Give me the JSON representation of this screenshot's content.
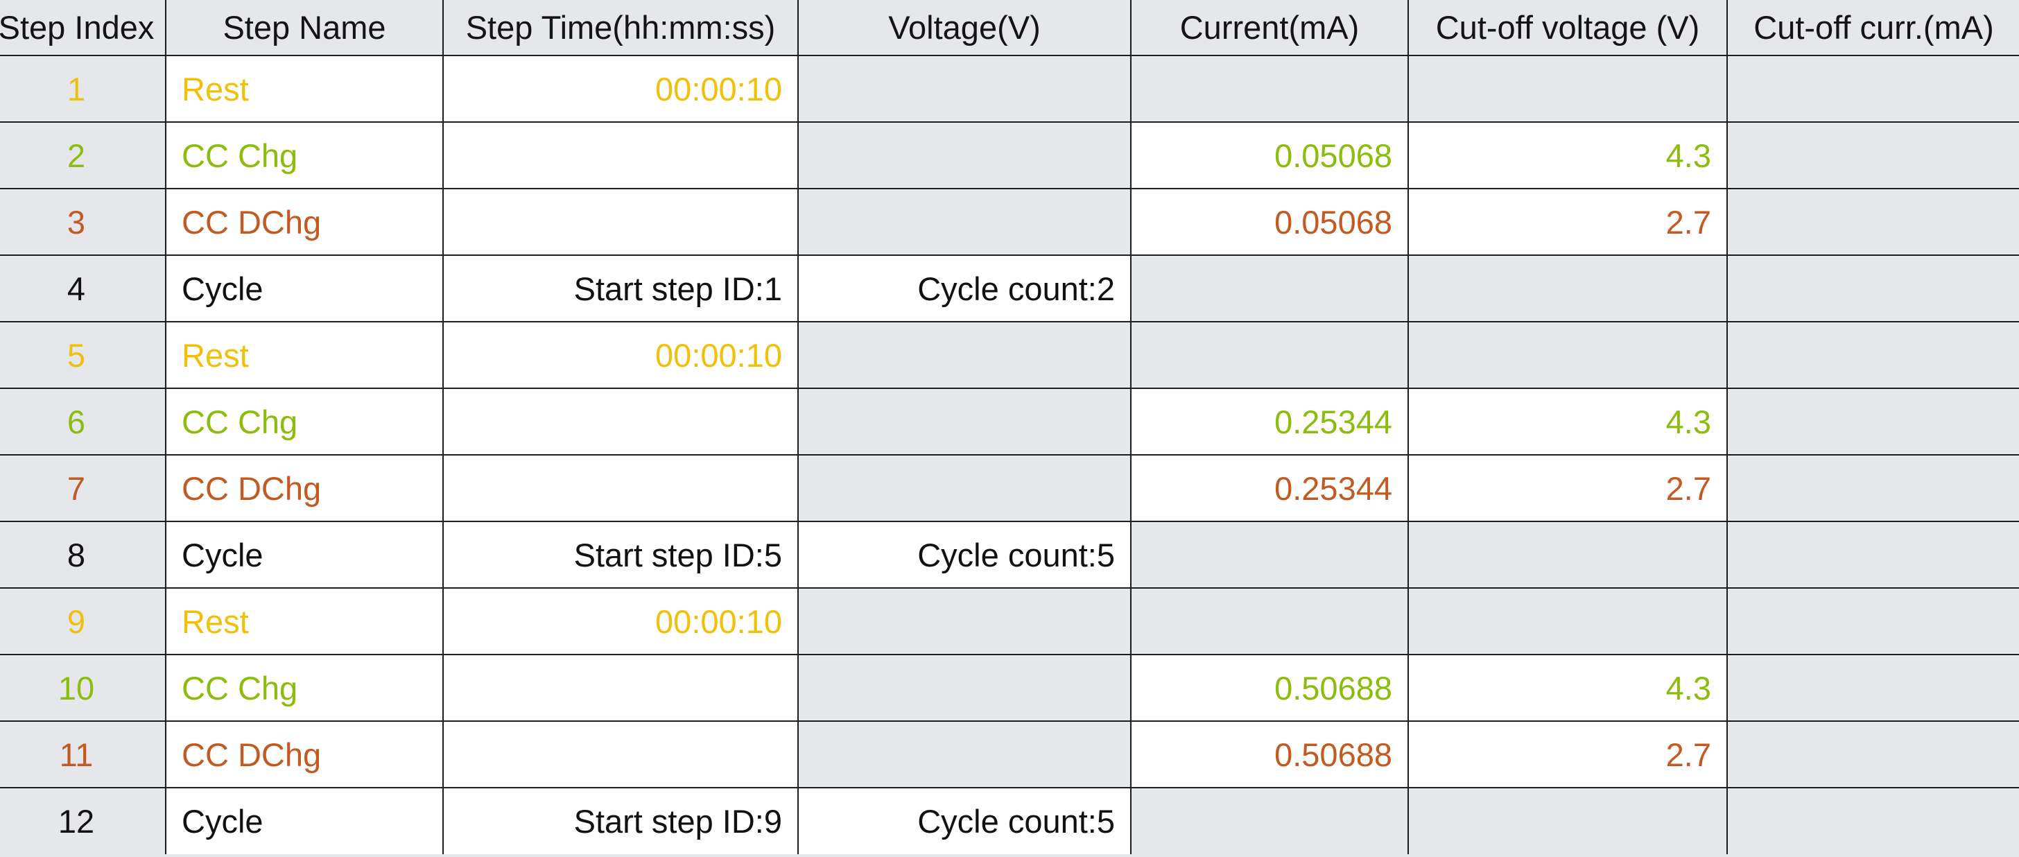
{
  "headers": [
    "Step Index",
    "Step Name",
    "Step Time(hh:mm:ss)",
    "Voltage(V)",
    "Current(mA)",
    "Cut-off voltage (V)",
    "Cut-off curr.(mA)"
  ],
  "colors": {
    "rest": "#efc10a",
    "cc_chg": "#8cbc0c",
    "cc_dchg": "#c25b22",
    "cycle": "#111111",
    "gray_cell": "#e6e7ea",
    "white_cell": "#ffffff"
  },
  "rows": [
    {
      "index": "1",
      "name": "Rest",
      "time": "00:00:10",
      "voltage": "",
      "current": "",
      "cutoff_voltage": "",
      "cutoff_current": ""
    },
    {
      "index": "2",
      "name": "CC Chg",
      "time": "",
      "voltage": "",
      "current": "0.05068",
      "cutoff_voltage": "4.3",
      "cutoff_current": ""
    },
    {
      "index": "3",
      "name": "CC DChg",
      "time": "",
      "voltage": "",
      "current": "0.05068",
      "cutoff_voltage": "2.7",
      "cutoff_current": ""
    },
    {
      "index": "4",
      "name": "Cycle",
      "time": "Start step ID:1",
      "voltage": "Cycle count:2",
      "current": "",
      "cutoff_voltage": "",
      "cutoff_current": ""
    },
    {
      "index": "5",
      "name": "Rest",
      "time": "00:00:10",
      "voltage": "",
      "current": "",
      "cutoff_voltage": "",
      "cutoff_current": ""
    },
    {
      "index": "6",
      "name": "CC Chg",
      "time": "",
      "voltage": "",
      "current": "0.25344",
      "cutoff_voltage": "4.3",
      "cutoff_current": ""
    },
    {
      "index": "7",
      "name": "CC DChg",
      "time": "",
      "voltage": "",
      "current": "0.25344",
      "cutoff_voltage": "2.7",
      "cutoff_current": ""
    },
    {
      "index": "8",
      "name": "Cycle",
      "time": "Start step ID:5",
      "voltage": "Cycle count:5",
      "current": "",
      "cutoff_voltage": "",
      "cutoff_current": ""
    },
    {
      "index": "9",
      "name": "Rest",
      "time": "00:00:10",
      "voltage": "",
      "current": "",
      "cutoff_voltage": "",
      "cutoff_current": ""
    },
    {
      "index": "10",
      "name": "CC Chg",
      "time": "",
      "voltage": "",
      "current": "0.50688",
      "cutoff_voltage": "4.3",
      "cutoff_current": ""
    },
    {
      "index": "11",
      "name": "CC DChg",
      "time": "",
      "voltage": "",
      "current": "0.50688",
      "cutoff_voltage": "2.7",
      "cutoff_current": ""
    },
    {
      "index": "12",
      "name": "Cycle",
      "time": "Start step ID:9",
      "voltage": "Cycle count:5",
      "current": "",
      "cutoff_voltage": "",
      "cutoff_current": ""
    }
  ]
}
